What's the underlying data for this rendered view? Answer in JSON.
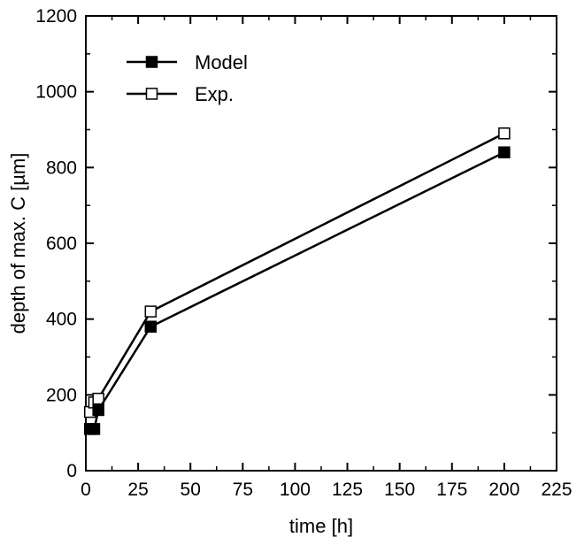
{
  "chart_data": {
    "type": "line",
    "title": "",
    "xlabel": "time [h]",
    "ylabel": "depth of max. C [µm]",
    "xlim": [
      0,
      225
    ],
    "ylim": [
      0,
      1200
    ],
    "xticks": [
      0,
      25,
      50,
      75,
      100,
      125,
      150,
      175,
      200,
      225
    ],
    "yticks": [
      0,
      200,
      400,
      600,
      800,
      1000,
      1200
    ],
    "grid": false,
    "legend_position": "top-left",
    "series": [
      {
        "name": "Model",
        "marker": "filled-square",
        "color": "#000000",
        "x": [
          2,
          4,
          6,
          31,
          200
        ],
        "y": [
          110,
          110,
          160,
          380,
          840
        ]
      },
      {
        "name": "Exp.",
        "marker": "open-square",
        "color": "#000000",
        "x": [
          2,
          4,
          6,
          31,
          200
        ],
        "y": [
          155,
          180,
          190,
          420,
          890
        ]
      }
    ]
  }
}
